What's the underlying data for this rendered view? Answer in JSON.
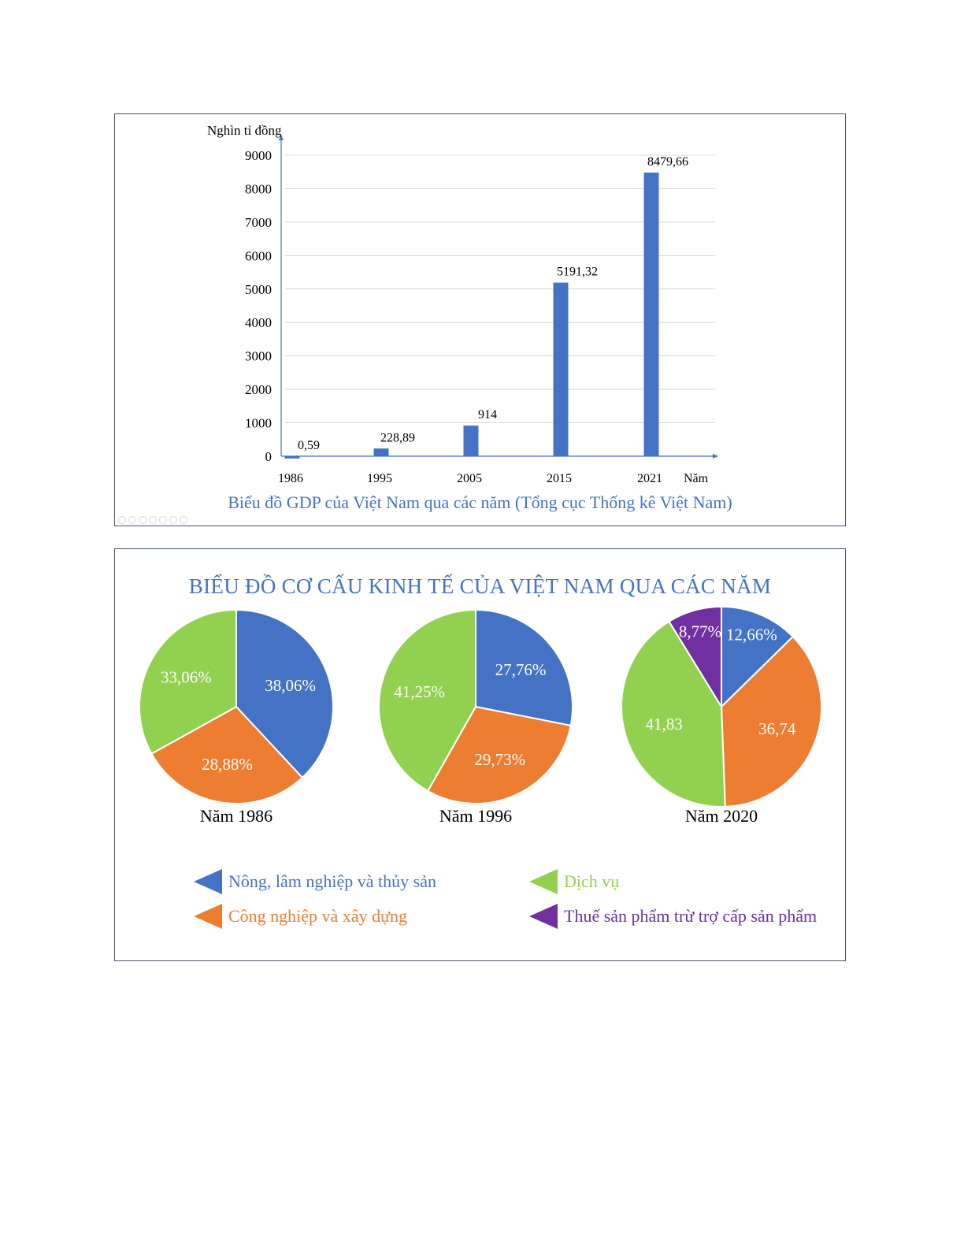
{
  "gdp_chart": {
    "caption": "Biểu đồ GDP của Việt Nam qua các năm (Tổng cục Thống kê Việt Nam)"
  },
  "structure_chart": {
    "title": "BIỂU ĐỒ CƠ CẤU KINH TẾ CỦA VIỆT NAM QUA CÁC NĂM"
  },
  "chart_data": [
    {
      "type": "bar",
      "title": "Biểu đồ GDP của Việt Nam qua các năm (Tổng cục Thống kê Việt Nam)",
      "xlabel": "Năm",
      "ylabel": "Nghìn tỉ đồng",
      "categories": [
        "1986",
        "1995",
        "2005",
        "2015",
        "2021"
      ],
      "values": [
        0.59,
        228.89,
        914,
        5191.32,
        8479.66
      ],
      "value_labels": [
        "0,59",
        "228,89",
        "914",
        "5191,32",
        "8479,66"
      ],
      "yticks": [
        0,
        1000,
        2000,
        3000,
        4000,
        5000,
        6000,
        7000,
        8000,
        9000
      ],
      "ylim": [
        0,
        9000
      ],
      "grid": true,
      "bar_color": "#4472c4",
      "axis_color": "#4472c4"
    },
    {
      "type": "pie",
      "title": "BIỂU ĐỒ CƠ CẤU KINH TẾ CỦA VIỆT NAM QUA CÁC NĂM",
      "legend": [
        {
          "label": "Nông, lâm nghiệp và thủy sản",
          "color": "#4472c4"
        },
        {
          "label": "Dịch vụ",
          "color": "#92d050"
        },
        {
          "label": "Công nghiệp và xây dựng",
          "color": "#ed7d31"
        },
        {
          "label": "Thuế sản phẩm trừ trợ cấp sản phẩm",
          "color": "#7030a0"
        }
      ],
      "legend_position": "bottom",
      "pies": [
        {
          "label": "Năm 1986",
          "slices": [
            {
              "category": "Nông, lâm nghiệp và thủy sản",
              "value": 38.06,
              "label": "38,06%",
              "color": "#4472c4"
            },
            {
              "category": "Công nghiệp và xây dựng",
              "value": 28.88,
              "label": "28,88%",
              "color": "#ed7d31"
            },
            {
              "category": "Dịch vụ",
              "value": 33.06,
              "label": "33,06%",
              "color": "#92d050"
            }
          ]
        },
        {
          "label": "Năm 1996",
          "slices": [
            {
              "category": "Nông, lâm nghiệp và thủy sản",
              "value": 27.76,
              "label": "27,76%",
              "color": "#4472c4"
            },
            {
              "category": "Công nghiệp và xây dựng",
              "value": 29.73,
              "label": "29,73%",
              "color": "#ed7d31"
            },
            {
              "category": "Dịch vụ",
              "value": 41.25,
              "label": "41,25%",
              "color": "#92d050"
            }
          ]
        },
        {
          "label": "Năm 2020",
          "slices": [
            {
              "category": "Nông, lâm nghiệp và thủy sản",
              "value": 12.66,
              "label": "12,66%",
              "color": "#4472c4"
            },
            {
              "category": "Công nghiệp và xây dựng",
              "value": 36.74,
              "label": "36,74",
              "color": "#ed7d31"
            },
            {
              "category": "Dịch vụ",
              "value": 41.83,
              "label": "41,83",
              "color": "#92d050"
            },
            {
              "category": "Thuế sản phẩm trừ trợ cấp sản phẩm",
              "value": 8.77,
              "label": "8,77%",
              "color": "#7030a0"
            }
          ]
        }
      ]
    }
  ]
}
